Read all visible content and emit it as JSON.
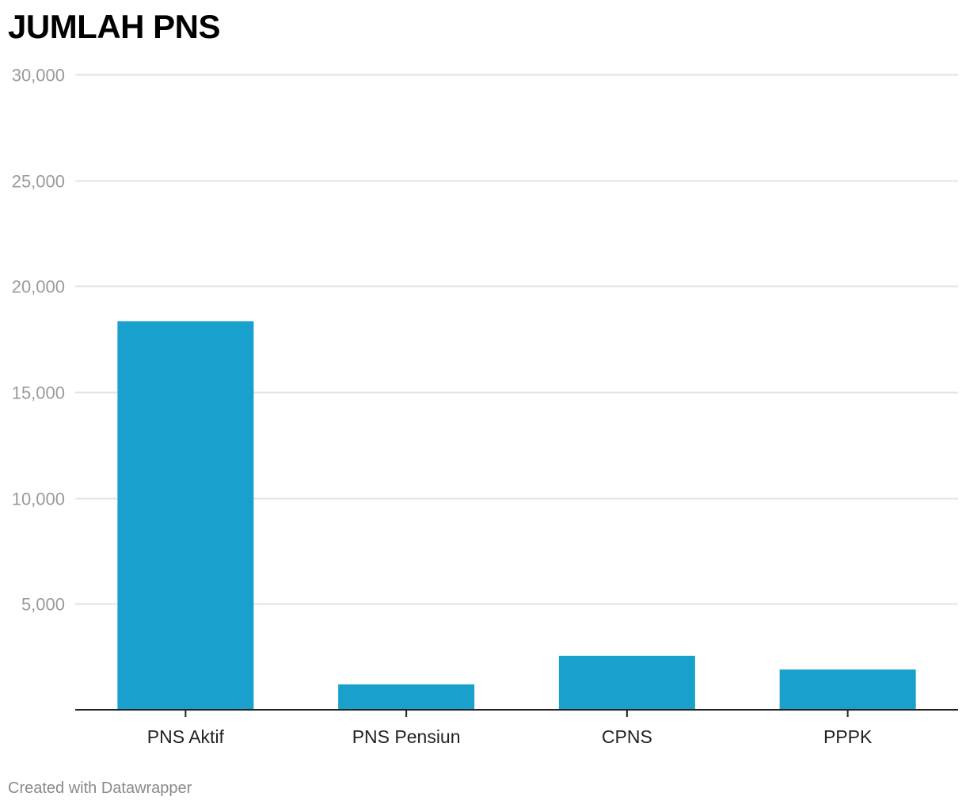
{
  "chart_data": {
    "type": "bar",
    "title": "JUMLAH PNS",
    "categories": [
      "PNS Aktif",
      "PNS Pensiun",
      "CPNS",
      "PPPK"
    ],
    "values": [
      18350,
      1200,
      2550,
      1900
    ],
    "ylim": [
      0,
      30000
    ],
    "yticks": [
      5000,
      10000,
      15000,
      20000,
      25000,
      30000
    ],
    "ytick_labels": [
      "5,000",
      "10,000",
      "15,000",
      "20,000",
      "25,000",
      "30,000"
    ],
    "grid": true,
    "xlabel": "",
    "ylabel": "",
    "bar_color": "#1aa0cc",
    "gridline_color": "#e3e3e3",
    "axis_color": "#222222",
    "tick_label_color": "#9a9a9a"
  },
  "footer": {
    "credit": "Created with Datawrapper"
  }
}
